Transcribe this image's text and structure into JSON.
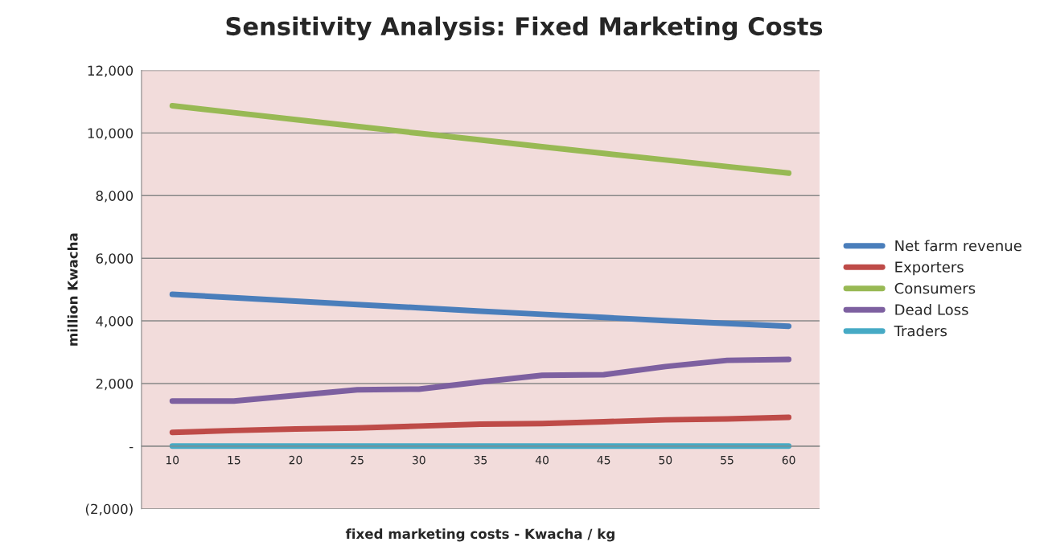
{
  "chart_data": {
    "type": "line",
    "title": "Sensitivity Analysis: Fixed Marketing Costs",
    "xlabel": "fixed marketing costs - Kwacha / kg",
    "ylabel": "million Kwacha",
    "categories": [
      "10",
      "15",
      "20",
      "25",
      "30",
      "35",
      "40",
      "45",
      "50",
      "55",
      "60"
    ],
    "series": [
      {
        "name": "Net farm revenue",
        "color": "#4a7ebb",
        "values": [
          4850,
          4740,
          4630,
          4520,
          4420,
          4310,
          4210,
          4110,
          4010,
          3920,
          3830
        ]
      },
      {
        "name": "Exporters",
        "color": "#be4b48",
        "values": [
          440,
          500,
          550,
          580,
          640,
          700,
          720,
          780,
          840,
          870,
          920
        ]
      },
      {
        "name": "Consumers",
        "color": "#98b954",
        "values": [
          10870,
          10650,
          10430,
          10210,
          9990,
          9780,
          9560,
          9350,
          9140,
          8930,
          8720
        ]
      },
      {
        "name": "Dead Loss",
        "color": "#7d60a0",
        "values": [
          1440,
          1440,
          1620,
          1800,
          1820,
          2050,
          2260,
          2280,
          2540,
          2740,
          2770
        ]
      },
      {
        "name": "Traders",
        "color": "#46aac5",
        "values": [
          0,
          0,
          0,
          0,
          0,
          0,
          0,
          0,
          0,
          0,
          0
        ]
      }
    ],
    "ylim": [
      -2000,
      12000
    ],
    "yticks": [
      {
        "value": -2000,
        "label": "(2,000)"
      },
      {
        "value": 0,
        "label": "-"
      },
      {
        "value": 2000,
        "label": "2,000"
      },
      {
        "value": 4000,
        "label": "4,000"
      },
      {
        "value": 6000,
        "label": "6,000"
      },
      {
        "value": 8000,
        "label": "8,000"
      },
      {
        "value": 10000,
        "label": "10,000"
      },
      {
        "value": 12000,
        "label": "12,000"
      }
    ],
    "grid": "y",
    "legend": "right",
    "marker": "none",
    "line_style": "solid"
  }
}
